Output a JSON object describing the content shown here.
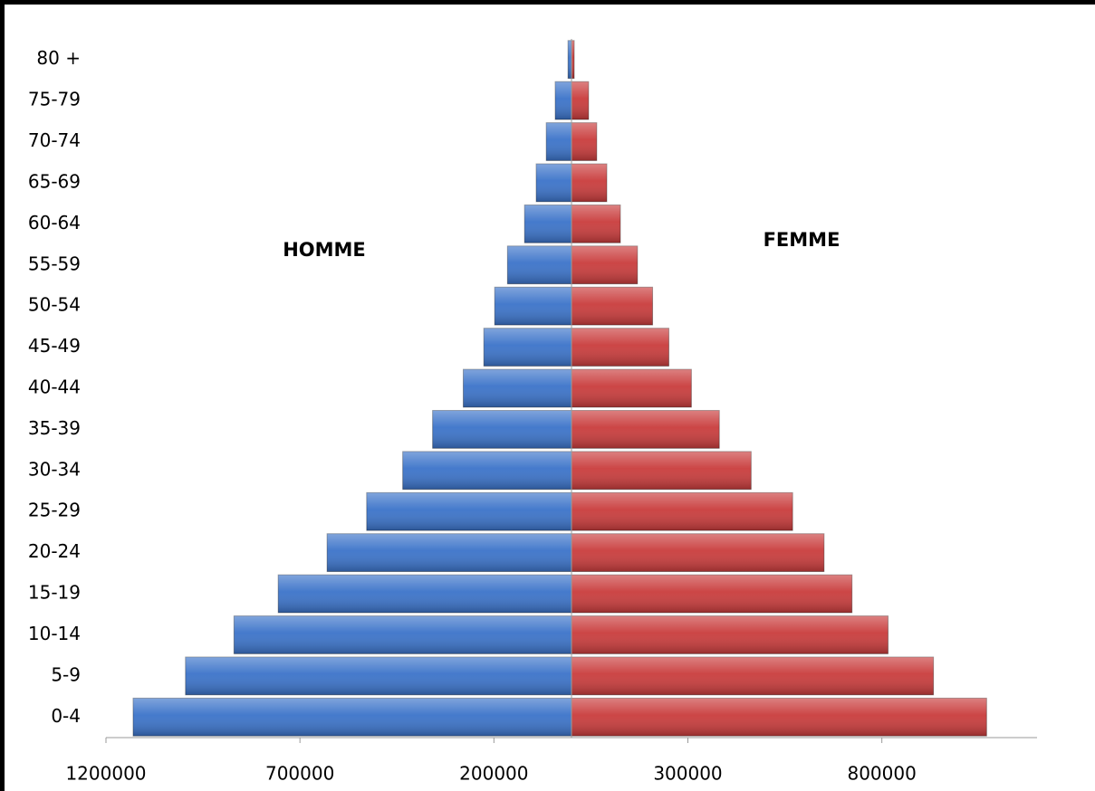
{
  "chart_data": {
    "type": "pyramid",
    "categories": [
      "0-4",
      "5-9",
      "10-14",
      "15-19",
      "20-24",
      "25-29",
      "30-34",
      "35-39",
      "40-44",
      "45-49",
      "50-54",
      "55-59",
      "60-64",
      "65-69",
      "70-74",
      "75-79",
      "80 +"
    ],
    "series": [
      {
        "name": "HOMME",
        "color": "#3b73c9",
        "values": [
          -1130000,
          -995000,
          -870000,
          -756000,
          -630000,
          -528000,
          -435000,
          -358000,
          -279000,
          -226000,
          -198000,
          -165000,
          -121000,
          -91000,
          -65000,
          -42000,
          -9000
        ]
      },
      {
        "name": "FEMME",
        "color": "#c93c3c",
        "values": [
          1070000,
          933000,
          816000,
          723000,
          651000,
          570000,
          463000,
          381000,
          309000,
          251000,
          209000,
          170000,
          126000,
          91000,
          65000,
          44000,
          7000
        ]
      }
    ],
    "xlim": [
      -1200000,
      1200000
    ],
    "xticks": [
      {
        "value": -1200000,
        "label": "1200000"
      },
      {
        "value": -700000,
        "label": "700000"
      },
      {
        "value": -200000,
        "label": "200000"
      },
      {
        "value": 300000,
        "label": "300000"
      },
      {
        "value": 800000,
        "label": "800000"
      }
    ]
  }
}
